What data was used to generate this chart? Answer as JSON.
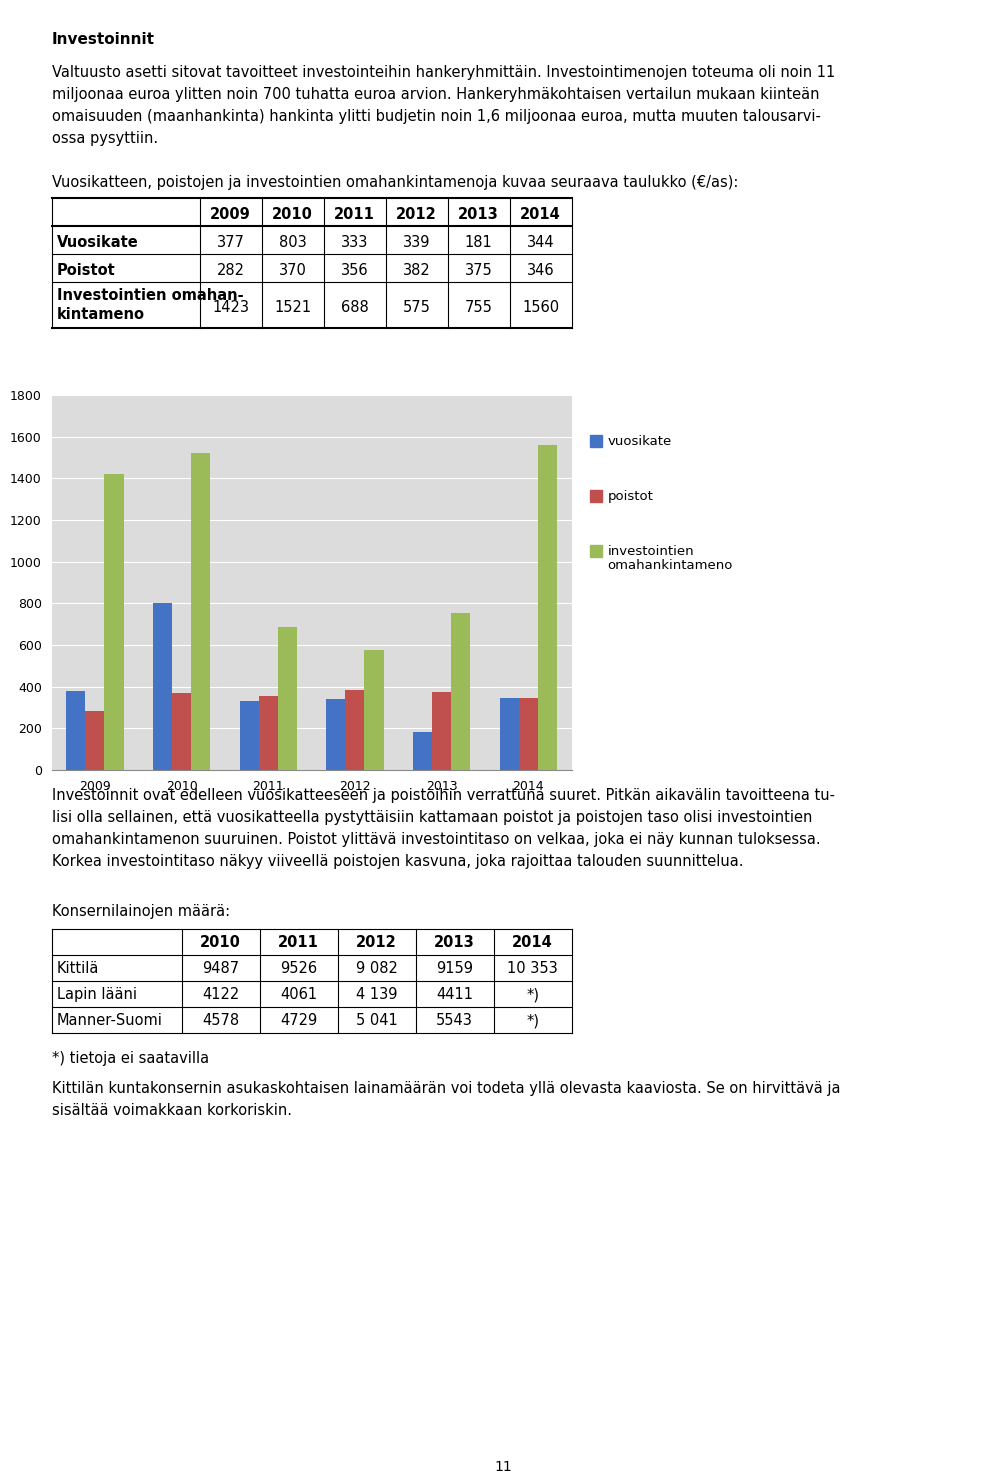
{
  "title": "Investoinnit",
  "para1_line1": "Valtuusto asetti sitovat tavoitteet investointeihin hankeryhmittäin. Investointimenojen toteuma oli noin 11",
  "para1_line2": "miljoonaa euroa ylitten noin 700 tuhatta euroa arvion. Hankeryhmäkohtaisen vertailun mukaan kiinteän",
  "para1_line3": "omaisuuden (maanhankinta) hankinta ylitti budjetin noin 1,6 miljoonaa euroa, mutta muuten talousarvi-",
  "para1_line4": "ossa pysyttiin.",
  "table1_intro": "Vuosikatteen, poistojen ja investointien omahankintamenoja kuvaa seuraava taulukko (€/as):",
  "table1_headers": [
    "",
    "2009",
    "2010",
    "2011",
    "2012",
    "2013",
    "2014"
  ],
  "table1_rows": [
    [
      "Vuosikate",
      "377",
      "803",
      "333",
      "339",
      "181",
      "344"
    ],
    [
      "Poistot",
      "282",
      "370",
      "356",
      "382",
      "375",
      "346"
    ],
    [
      "Investointien omahan-\nkintameno",
      "1423",
      "1521",
      "688",
      "575",
      "755",
      "1560"
    ]
  ],
  "years": [
    2009,
    2010,
    2011,
    2012,
    2013,
    2014
  ],
  "vuosikate": [
    377,
    803,
    333,
    339,
    181,
    344
  ],
  "poistot": [
    282,
    370,
    356,
    382,
    375,
    346
  ],
  "investoinnit": [
    1423,
    1521,
    688,
    575,
    755,
    1560
  ],
  "bar_color_vuosikate": "#4472C4",
  "bar_color_poistot": "#C0504D",
  "bar_color_investoinnit": "#9BBB59",
  "legend_vuosikate": "vuosikate",
  "legend_poistot": "poistot",
  "legend_investoinnit": "investointien\nomahankintameno",
  "ylim": [
    0,
    1800
  ],
  "yticks": [
    0,
    200,
    400,
    600,
    800,
    1000,
    1200,
    1400,
    1600,
    1800
  ],
  "para2_line1": "Investoinnit ovat edelleen vuosikatteeseen ja poistoihin verrattuna suuret. Pitkän aikavälin tavoitteena tu-",
  "para2_line2": "lisi olla sellainen, että vuosikatteella pystyttäisiin kattamaan poistot ja poistojen taso olisi investointien",
  "para2_line3": "omahankintamenon suuruinen. Poistot ylittävä investointitaso on velkaa, joka ei näy kunnan tuloksessa.",
  "para2_line4": "Korkea investointitaso näkyy viiveellä poistojen kasvuna, joka rajoittaa talouden suunnittelua.",
  "konserni_intro": "Konsernilainojen määrä:",
  "table2_headers": [
    "",
    "2010",
    "2011",
    "2012",
    "2013",
    "2014"
  ],
  "table2_rows": [
    [
      "Kittilä",
      "9487",
      "9526",
      "9 082",
      "9159",
      "10 353"
    ],
    [
      "Lapin lääni",
      "4122",
      "4061",
      "4 139",
      "4411",
      "*)"
    ],
    [
      "Manner-Suomi",
      "4578",
      "4729",
      "5 041",
      "5543",
      "*)"
    ]
  ],
  "footnote": "*) tietoja ei saatavilla",
  "para3_line1": "Kittilän kuntakonsernin asukaskohtaisen lainamäärän voi todeta yllä olevasta kaaviosta. Se on hirvittävä ja",
  "para3_line2": "sisältää voimakkaan korkoriskin.",
  "page_number": "11",
  "background_color": "#FFFFFF",
  "text_color": "#000000",
  "chart_bg": "#DCDCDC",
  "line_color_grid": "#FFFFFF"
}
